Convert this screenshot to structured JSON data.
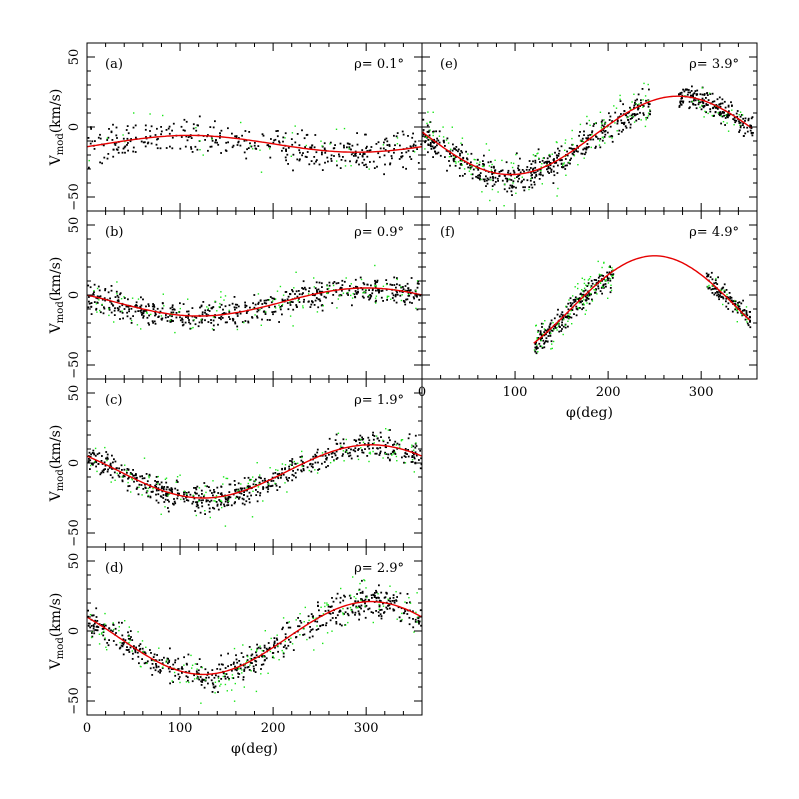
{
  "colors": {
    "black": "#000000",
    "green": "#19e619",
    "red": "#e60000"
  },
  "axes": {
    "xlabel": "φ(deg)",
    "ylabel_main": "V",
    "ylabel_sub": "mod",
    "ylabel_unit": "(km/s)"
  },
  "chart_data": [
    {
      "id": "a",
      "type": "scatter",
      "panel_label": "(a)",
      "rho_label": "ρ= 0.1°",
      "xlim": [
        0,
        360
      ],
      "ylim": [
        -60,
        60
      ],
      "x_ticks": [],
      "y_tick_labels": [
        "50",
        "0",
        "−50"
      ],
      "y_tick_values": [
        50,
        0,
        -50
      ],
      "model": {
        "mean": -12,
        "amp": 6,
        "phase_deg": 110
      },
      "segments": [
        {
          "from": 0,
          "to": 360,
          "offset": 0,
          "scatter": 9,
          "density": 420,
          "green_frac": 0.06
        }
      ]
    },
    {
      "id": "b",
      "type": "scatter",
      "panel_label": "(b)",
      "rho_label": "ρ= 0.9°",
      "xlim": [
        0,
        360
      ],
      "ylim": [
        -60,
        60
      ],
      "x_ticks": [],
      "y_tick_labels": [
        "50",
        "0",
        "−50"
      ],
      "y_tick_values": [
        50,
        0,
        -50
      ],
      "model": {
        "mean": -5,
        "amp": 10,
        "phase_deg": 300
      },
      "segments": [
        {
          "from": 0,
          "to": 360,
          "offset": 0,
          "scatter": 7,
          "density": 700,
          "green_frac": 0.18
        }
      ]
    },
    {
      "id": "c",
      "type": "scatter",
      "panel_label": "(c)",
      "rho_label": "ρ= 1.9°",
      "xlim": [
        0,
        360
      ],
      "ylim": [
        -60,
        60
      ],
      "x_ticks": [],
      "y_tick_labels": [
        "50",
        "0",
        "−50"
      ],
      "y_tick_values": [
        50,
        0,
        -50
      ],
      "model": {
        "mean": -6,
        "amp": 19,
        "phase_deg": 305
      },
      "segments": [
        {
          "from": 0,
          "to": 360,
          "offset": 0,
          "scatter": 7,
          "density": 750,
          "green_frac": 0.2
        }
      ]
    },
    {
      "id": "d",
      "type": "scatter",
      "panel_label": "(d)",
      "rho_label": "ρ= 2.9°",
      "xlim": [
        0,
        360
      ],
      "ylim": [
        -60,
        60
      ],
      "x_ticks": [
        0,
        100,
        200,
        300
      ],
      "y_tick_labels": [
        "50",
        "0",
        "−50"
      ],
      "y_tick_values": [
        50,
        0,
        -50
      ],
      "model": {
        "mean": -5,
        "amp": 26,
        "phase_deg": 305
      },
      "segments": [
        {
          "from": 0,
          "to": 360,
          "offset": 0,
          "scatter": 8,
          "density": 750,
          "green_frac": 0.22
        }
      ]
    },
    {
      "id": "e",
      "type": "scatter",
      "panel_label": "(e)",
      "rho_label": "ρ= 3.9°",
      "xlim": [
        0,
        360
      ],
      "ylim": [
        -60,
        60
      ],
      "x_ticks": [],
      "y_tick_labels": [],
      "y_tick_values": [
        50,
        0,
        -50
      ],
      "model": {
        "mean": -6,
        "amp": 28,
        "phase_deg": 275
      },
      "segments": [
        {
          "from": 0,
          "to": 245,
          "offset": 0,
          "scatter": 8,
          "density": 650,
          "green_frac": 0.22
        },
        {
          "from": 275,
          "to": 355,
          "offset": 0,
          "scatter": 6,
          "density": 220,
          "green_frac": 0.15
        }
      ]
    },
    {
      "id": "f",
      "type": "scatter",
      "panel_label": "(f)",
      "rho_label": "ρ= 4.9°",
      "xlim": [
        0,
        360
      ],
      "ylim": [
        -60,
        60
      ],
      "x_ticks": [
        0,
        100,
        200,
        300
      ],
      "y_tick_labels": [],
      "y_tick_values": [
        50,
        0,
        -50
      ],
      "model": {
        "mean": -10,
        "amp": 38,
        "phase_deg": 250
      },
      "segments": [
        {
          "from": 120,
          "to": 205,
          "offset": 0,
          "scatter": 6,
          "density": 320,
          "green_frac": 0.25
        },
        {
          "from": 305,
          "to": 352,
          "offset": 0,
          "scatter": 5,
          "density": 140,
          "green_frac": 0.15
        }
      ]
    }
  ]
}
